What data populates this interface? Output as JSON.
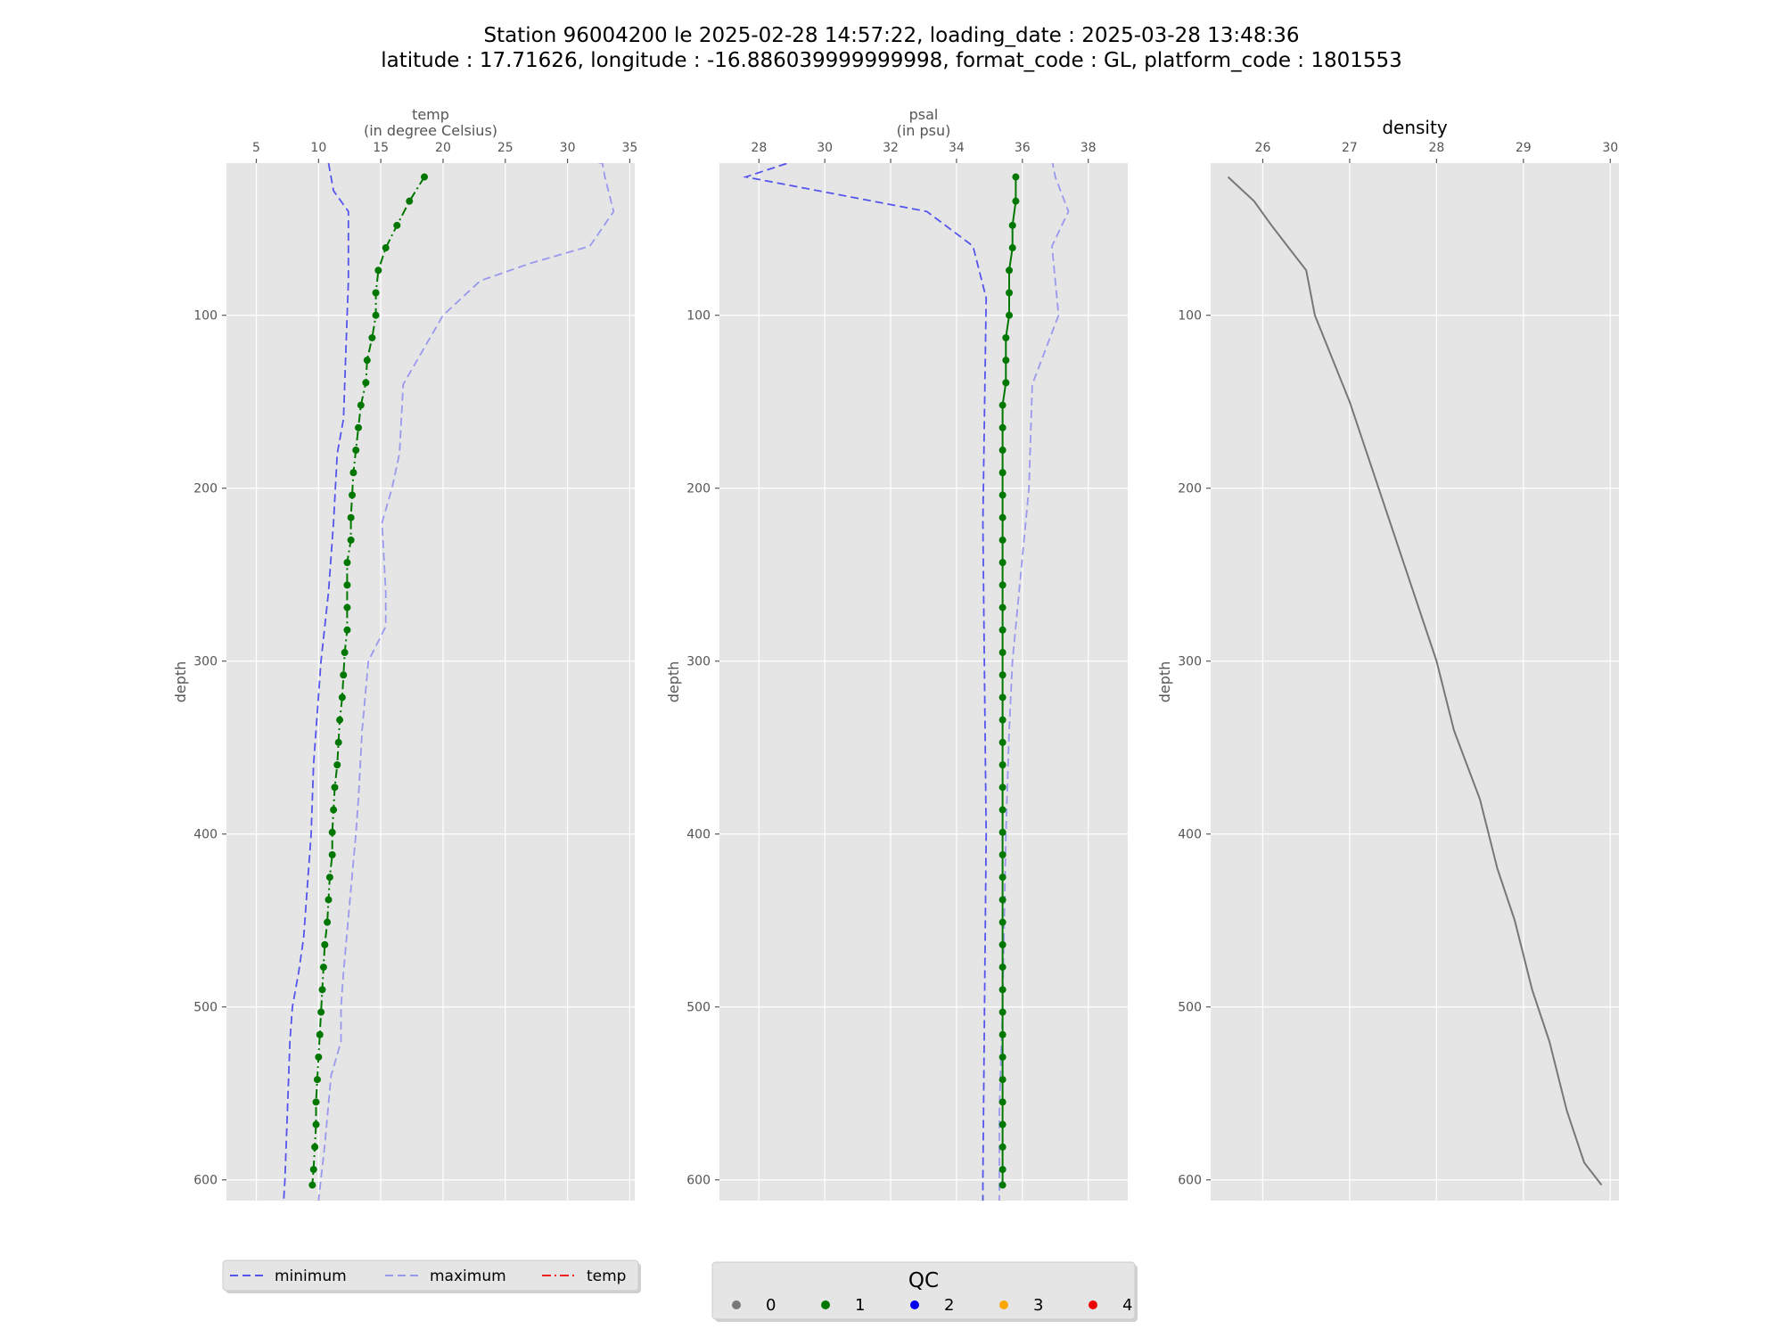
{
  "title": {
    "line1": "Station 96004200 le 2025-02-28 14:57:22, loading_date : 2025-03-28 13:48:36",
    "line2": "latitude : 17.71626, longitude : -16.886039999999998, format_code : GL, platform_code : 1801553"
  },
  "colors": {
    "panel_bg": "#e5e5e5",
    "grid": "#ffffff",
    "minimum": "#5555ee",
    "maximum": "#9999ee",
    "temp_line": "#ee2222",
    "profile": "#007700",
    "density": "#777777",
    "text": "#555555"
  },
  "chart_data": [
    {
      "type": "line",
      "title": "temp",
      "subtitle": "(in degree Celsius)",
      "ylabel": "depth",
      "xlim": [
        2.6,
        35.4
      ],
      "ylim": [
        612,
        12
      ],
      "xticks": [
        5,
        10,
        15,
        20,
        25,
        30,
        35
      ],
      "yticks": [
        100,
        200,
        300,
        400,
        500,
        600
      ],
      "series": [
        {
          "name": "minimum",
          "style": "dashed-min",
          "points": [
            [
              10.8,
              12
            ],
            [
              11.2,
              28
            ],
            [
              12.4,
              40
            ],
            [
              12.4,
              80
            ],
            [
              12.2,
              120
            ],
            [
              12.0,
              160
            ],
            [
              11.5,
              180
            ],
            [
              11.2,
              220
            ],
            [
              10.8,
              260
            ],
            [
              10.2,
              300
            ],
            [
              9.8,
              340
            ],
            [
              9.6,
              360
            ],
            [
              9.4,
              400
            ],
            [
              9.2,
              420
            ],
            [
              8.8,
              460
            ],
            [
              8.4,
              480
            ],
            [
              7.9,
              500
            ],
            [
              7.7,
              520
            ],
            [
              7.5,
              560
            ],
            [
              7.3,
              600
            ],
            [
              7.2,
              612
            ]
          ]
        },
        {
          "name": "maximum",
          "style": "dashed-max",
          "points": [
            [
              29.5,
              10
            ],
            [
              32.8,
              12
            ],
            [
              33.0,
              20
            ],
            [
              33.7,
              40
            ],
            [
              31.8,
              60
            ],
            [
              27.0,
              70
            ],
            [
              23.0,
              80
            ],
            [
              20.0,
              100
            ],
            [
              18.0,
              125
            ],
            [
              16.8,
              140
            ],
            [
              16.5,
              180
            ],
            [
              15.9,
              200
            ],
            [
              15.1,
              220
            ],
            [
              15.4,
              260
            ],
            [
              15.4,
              280
            ],
            [
              14.0,
              300
            ],
            [
              13.5,
              340
            ],
            [
              13.2,
              380
            ],
            [
              13.0,
              400
            ],
            [
              12.5,
              440
            ],
            [
              12.0,
              480
            ],
            [
              11.8,
              500
            ],
            [
              11.8,
              520
            ],
            [
              11.0,
              540
            ],
            [
              10.5,
              580
            ],
            [
              10.0,
              612
            ]
          ]
        },
        {
          "name": "temp",
          "style": "profile-dashdot",
          "points": [
            [
              18.5,
              20
            ],
            [
              17.3,
              34
            ],
            [
              16.3,
              48
            ],
            [
              15.4,
              61
            ],
            [
              14.8,
              74
            ],
            [
              14.6,
              87
            ],
            [
              14.6,
              100
            ],
            [
              14.3,
              113
            ],
            [
              13.9,
              126
            ],
            [
              13.8,
              139
            ],
            [
              13.4,
              152
            ],
            [
              13.2,
              165
            ],
            [
              13.0,
              178
            ],
            [
              12.8,
              191
            ],
            [
              12.7,
              204
            ],
            [
              12.6,
              217
            ],
            [
              12.6,
              230
            ],
            [
              12.3,
              243
            ],
            [
              12.3,
              256
            ],
            [
              12.3,
              269
            ],
            [
              12.3,
              282
            ],
            [
              12.1,
              295
            ],
            [
              12.0,
              308
            ],
            [
              11.9,
              321
            ],
            [
              11.7,
              334
            ],
            [
              11.6,
              347
            ],
            [
              11.5,
              360
            ],
            [
              11.3,
              373
            ],
            [
              11.2,
              386
            ],
            [
              11.1,
              399
            ],
            [
              11.1,
              412
            ],
            [
              10.9,
              425
            ],
            [
              10.8,
              438
            ],
            [
              10.7,
              451
            ],
            [
              10.5,
              464
            ],
            [
              10.4,
              477
            ],
            [
              10.3,
              490
            ],
            [
              10.2,
              503
            ],
            [
              10.1,
              516
            ],
            [
              10.0,
              529
            ],
            [
              9.9,
              542
            ],
            [
              9.8,
              555
            ],
            [
              9.8,
              568
            ],
            [
              9.7,
              581
            ],
            [
              9.6,
              594
            ],
            [
              9.5,
              603
            ]
          ]
        }
      ]
    },
    {
      "type": "line",
      "title": "psal",
      "subtitle": "(in psu)",
      "ylabel": "depth",
      "xlim": [
        26.8,
        39.2
      ],
      "ylim": [
        612,
        12
      ],
      "xticks": [
        28,
        30,
        32,
        34,
        36,
        38
      ],
      "yticks": [
        100,
        200,
        300,
        400,
        500,
        600
      ],
      "series": [
        {
          "name": "minimum",
          "style": "dashed-min",
          "points": [
            [
              29.2,
              10
            ],
            [
              27.6,
              20
            ],
            [
              33.1,
              40
            ],
            [
              34.5,
              60
            ],
            [
              34.9,
              90
            ],
            [
              34.8,
              220
            ],
            [
              34.9,
              400
            ],
            [
              34.8,
              600
            ],
            [
              34.8,
              612
            ]
          ]
        },
        {
          "name": "maximum",
          "style": "dashed-max",
          "points": [
            [
              36.9,
              10
            ],
            [
              37.0,
              20
            ],
            [
              37.4,
              40
            ],
            [
              36.9,
              60
            ],
            [
              37.1,
              100
            ],
            [
              36.3,
              140
            ],
            [
              36.2,
              200
            ],
            [
              35.9,
              260
            ],
            [
              35.7,
              300
            ],
            [
              35.6,
              340
            ],
            [
              35.5,
              400
            ],
            [
              35.4,
              500
            ],
            [
              35.3,
              560
            ],
            [
              35.3,
              612
            ]
          ]
        },
        {
          "name": "psal",
          "style": "profile-solid",
          "points": [
            [
              35.8,
              20
            ],
            [
              35.8,
              34
            ],
            [
              35.7,
              48
            ],
            [
              35.7,
              61
            ],
            [
              35.6,
              74
            ],
            [
              35.6,
              87
            ],
            [
              35.6,
              100
            ],
            [
              35.5,
              113
            ],
            [
              35.5,
              126
            ],
            [
              35.5,
              139
            ],
            [
              35.4,
              152
            ],
            [
              35.4,
              165
            ],
            [
              35.4,
              178
            ],
            [
              35.4,
              191
            ],
            [
              35.4,
              204
            ],
            [
              35.4,
              217
            ],
            [
              35.4,
              230
            ],
            [
              35.4,
              243
            ],
            [
              35.4,
              256
            ],
            [
              35.4,
              269
            ],
            [
              35.4,
              282
            ],
            [
              35.4,
              295
            ],
            [
              35.4,
              308
            ],
            [
              35.4,
              321
            ],
            [
              35.4,
              334
            ],
            [
              35.4,
              347
            ],
            [
              35.4,
              360
            ],
            [
              35.4,
              373
            ],
            [
              35.4,
              386
            ],
            [
              35.4,
              399
            ],
            [
              35.4,
              412
            ],
            [
              35.4,
              425
            ],
            [
              35.4,
              438
            ],
            [
              35.4,
              451
            ],
            [
              35.4,
              464
            ],
            [
              35.4,
              477
            ],
            [
              35.4,
              490
            ],
            [
              35.4,
              503
            ],
            [
              35.4,
              516
            ],
            [
              35.4,
              529
            ],
            [
              35.4,
              542
            ],
            [
              35.4,
              555
            ],
            [
              35.4,
              568
            ],
            [
              35.4,
              581
            ],
            [
              35.4,
              594
            ],
            [
              35.4,
              603
            ]
          ]
        }
      ]
    },
    {
      "type": "line",
      "title": "density",
      "subtitle": "",
      "ylabel": "depth",
      "xlim": [
        25.4,
        30.1
      ],
      "ylim": [
        612,
        12
      ],
      "xticks": [
        26,
        27,
        28,
        29,
        30
      ],
      "yticks": [
        100,
        200,
        300,
        400,
        500,
        600
      ],
      "series": [
        {
          "name": "density",
          "style": "solid-gray",
          "points": [
            [
              25.6,
              20
            ],
            [
              25.9,
              34
            ],
            [
              26.1,
              48
            ],
            [
              26.3,
              61
            ],
            [
              26.5,
              74
            ],
            [
              26.6,
              100
            ],
            [
              26.8,
              125
            ],
            [
              27.0,
              150
            ],
            [
              27.2,
              180
            ],
            [
              27.4,
              210
            ],
            [
              27.6,
              240
            ],
            [
              27.8,
              270
            ],
            [
              28.0,
              300
            ],
            [
              28.2,
              340
            ],
            [
              28.5,
              380
            ],
            [
              28.7,
              420
            ],
            [
              28.9,
              450
            ],
            [
              29.1,
              490
            ],
            [
              29.3,
              520
            ],
            [
              29.5,
              560
            ],
            [
              29.7,
              590
            ],
            [
              29.9,
              603
            ]
          ]
        }
      ]
    }
  ],
  "legend_lines": {
    "items": [
      {
        "label": "minimum",
        "style": "dashed-min"
      },
      {
        "label": "maximum",
        "style": "dashed-max"
      },
      {
        "label": "temp",
        "style": "dashdot-red"
      }
    ]
  },
  "legend_qc": {
    "title": "QC",
    "items": [
      {
        "label": "0",
        "color": "#777777"
      },
      {
        "label": "1",
        "color": "#007700"
      },
      {
        "label": "2",
        "color": "#0000ee"
      },
      {
        "label": "3",
        "color": "#ffa500"
      },
      {
        "label": "4",
        "color": "#ee0000"
      }
    ]
  }
}
